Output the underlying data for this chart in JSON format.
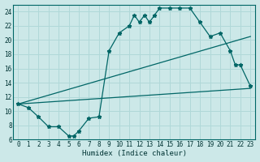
{
  "xlabel": "Humidex (Indice chaleur)",
  "bg_color": "#cce8e8",
  "grid_color": "#b0d8d8",
  "line_color": "#006666",
  "xlim": [
    -0.5,
    23.5
  ],
  "ylim": [
    6,
    25
  ],
  "xticks": [
    0,
    1,
    2,
    3,
    4,
    5,
    6,
    7,
    8,
    9,
    10,
    11,
    12,
    13,
    14,
    15,
    16,
    17,
    18,
    19,
    20,
    21,
    22,
    23
  ],
  "yticks": [
    6,
    8,
    10,
    12,
    14,
    16,
    18,
    20,
    22,
    24
  ],
  "main_line_x": [
    0,
    1,
    2,
    3,
    4,
    5,
    5.5,
    6,
    7,
    8,
    9,
    10,
    11,
    11.5,
    12,
    12.5,
    13,
    13.5,
    14,
    15,
    16,
    17,
    18,
    19,
    20,
    21,
    21.5,
    22,
    23
  ],
  "main_line_y": [
    11,
    10.5,
    9.2,
    7.8,
    7.8,
    6.5,
    6.5,
    7.2,
    9.0,
    9.2,
    18.5,
    21.0,
    22.0,
    23.5,
    22.5,
    23.5,
    22.5,
    23.5,
    24.5,
    24.5,
    24.5,
    24.5,
    22.5,
    20.5,
    21.0,
    18.5,
    16.5,
    16.5,
    13.5
  ],
  "upper_line_x": [
    0,
    23
  ],
  "upper_line_y": [
    11,
    20.5
  ],
  "lower_line_x": [
    0,
    23
  ],
  "lower_line_y": [
    11,
    13.2
  ]
}
